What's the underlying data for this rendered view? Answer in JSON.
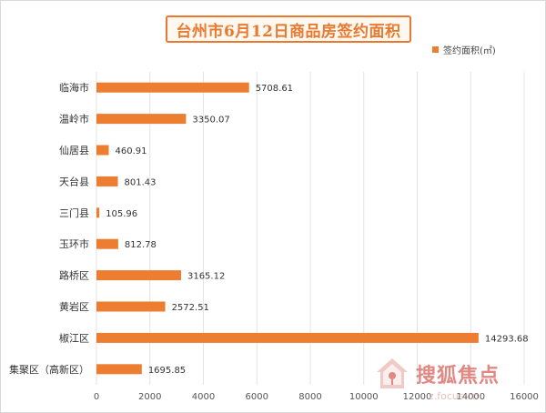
{
  "title": "台州市6月12日商品房签约面积",
  "legend": {
    "label": "签约面积(㎡)",
    "color": "#ed7d31"
  },
  "watermark": {
    "brand": "搜狐焦点",
    "url": "z.focus.cn"
  },
  "chart_data": {
    "type": "bar",
    "orientation": "horizontal",
    "categories": [
      "临海市",
      "温岭市",
      "仙居县",
      "天台县",
      "三门县",
      "玉环市",
      "路桥区",
      "黄岩区",
      "椒江区",
      "集聚区（高新区）"
    ],
    "series": [
      {
        "name": "签约面积(㎡)",
        "values": [
          5708.61,
          3350.07,
          460.91,
          801.43,
          105.96,
          812.78,
          3165.12,
          2572.51,
          14293.68,
          1695.85
        ]
      }
    ],
    "data_labels": [
      "5708.61",
      "3350.07",
      "460.91",
      "801.43",
      "105.96",
      "812.78",
      "3165.12",
      "2572.51",
      "14293.68",
      "1695.85"
    ],
    "xlim": [
      0,
      16000
    ],
    "xticks": [
      0,
      2000,
      4000,
      6000,
      8000,
      10000,
      12000,
      14000,
      16000
    ],
    "grid": true,
    "legend_position": "top-right",
    "bar_color": "#ed7d31"
  }
}
